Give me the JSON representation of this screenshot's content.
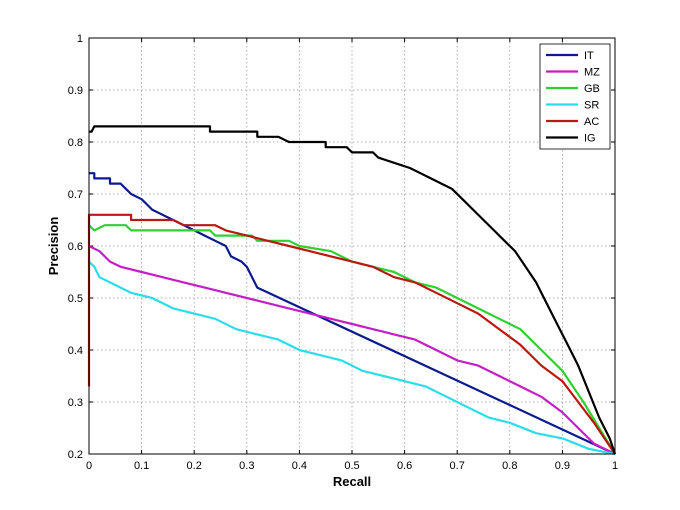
{
  "chart_data": {
    "type": "line",
    "title": "",
    "xlabel": "Recall",
    "ylabel": "Precision",
    "xlim": [
      0,
      1
    ],
    "ylim": [
      0.2,
      1
    ],
    "xticks": [
      "0",
      "0.1",
      "0.2",
      "0.3",
      "0.4",
      "0.5",
      "0.6",
      "0.7",
      "0.8",
      "0.9",
      "1"
    ],
    "yticks": [
      "0.2",
      "0.3",
      "0.4",
      "0.5",
      "0.6",
      "0.7",
      "0.8",
      "0.9",
      "1"
    ],
    "grid": true,
    "legend_position": "top-right",
    "series": [
      {
        "name": "IT",
        "color": "#0b1a8f",
        "points": [
          [
            0,
            0.74
          ],
          [
            0.01,
            0.74
          ],
          [
            0.01,
            0.73
          ],
          [
            0.04,
            0.73
          ],
          [
            0.04,
            0.72
          ],
          [
            0.06,
            0.72
          ],
          [
            0.07,
            0.71
          ],
          [
            0.08,
            0.7
          ],
          [
            0.1,
            0.69
          ],
          [
            0.11,
            0.68
          ],
          [
            0.12,
            0.67
          ],
          [
            0.14,
            0.66
          ],
          [
            0.16,
            0.65
          ],
          [
            0.18,
            0.64
          ],
          [
            0.2,
            0.63
          ],
          [
            0.22,
            0.62
          ],
          [
            0.24,
            0.61
          ],
          [
            0.26,
            0.6
          ],
          [
            0.27,
            0.58
          ],
          [
            0.29,
            0.57
          ],
          [
            0.3,
            0.56
          ],
          [
            0.32,
            0.52
          ],
          [
            1.0,
            0.2
          ]
        ]
      },
      {
        "name": "MZ",
        "color": "#c41fc4",
        "points": [
          [
            0,
            0.6
          ],
          [
            0.02,
            0.59
          ],
          [
            0.04,
            0.57
          ],
          [
            0.06,
            0.56
          ],
          [
            0.1,
            0.55
          ],
          [
            0.14,
            0.54
          ],
          [
            0.18,
            0.53
          ],
          [
            0.22,
            0.52
          ],
          [
            0.26,
            0.51
          ],
          [
            0.3,
            0.5
          ],
          [
            0.34,
            0.49
          ],
          [
            0.38,
            0.48
          ],
          [
            0.42,
            0.47
          ],
          [
            0.46,
            0.46
          ],
          [
            0.5,
            0.45
          ],
          [
            0.54,
            0.44
          ],
          [
            0.58,
            0.43
          ],
          [
            0.62,
            0.42
          ],
          [
            0.66,
            0.4
          ],
          [
            0.7,
            0.38
          ],
          [
            0.74,
            0.37
          ],
          [
            0.78,
            0.35
          ],
          [
            0.82,
            0.33
          ],
          [
            0.86,
            0.31
          ],
          [
            0.9,
            0.28
          ],
          [
            0.93,
            0.25
          ],
          [
            0.96,
            0.22
          ],
          [
            1.0,
            0.2
          ]
        ]
      },
      {
        "name": "GB",
        "color": "#2ed12e",
        "points": [
          [
            0,
            0.64
          ],
          [
            0.01,
            0.63
          ],
          [
            0.03,
            0.64
          ],
          [
            0.07,
            0.64
          ],
          [
            0.08,
            0.63
          ],
          [
            0.23,
            0.63
          ],
          [
            0.24,
            0.62
          ],
          [
            0.31,
            0.62
          ],
          [
            0.32,
            0.61
          ],
          [
            0.38,
            0.61
          ],
          [
            0.4,
            0.6
          ],
          [
            0.46,
            0.59
          ],
          [
            0.5,
            0.57
          ],
          [
            0.54,
            0.56
          ],
          [
            0.58,
            0.55
          ],
          [
            0.62,
            0.53
          ],
          [
            0.66,
            0.52
          ],
          [
            0.7,
            0.5
          ],
          [
            0.74,
            0.48
          ],
          [
            0.78,
            0.46
          ],
          [
            0.82,
            0.44
          ],
          [
            0.86,
            0.4
          ],
          [
            0.9,
            0.36
          ],
          [
            0.94,
            0.3
          ],
          [
            0.97,
            0.25
          ],
          [
            1.0,
            0.2
          ]
        ]
      },
      {
        "name": "SR",
        "color": "#2bdde8",
        "points": [
          [
            0,
            0.57
          ],
          [
            0.01,
            0.56
          ],
          [
            0.02,
            0.54
          ],
          [
            0.04,
            0.53
          ],
          [
            0.06,
            0.52
          ],
          [
            0.08,
            0.51
          ],
          [
            0.12,
            0.5
          ],
          [
            0.16,
            0.48
          ],
          [
            0.2,
            0.47
          ],
          [
            0.24,
            0.46
          ],
          [
            0.28,
            0.44
          ],
          [
            0.32,
            0.43
          ],
          [
            0.36,
            0.42
          ],
          [
            0.4,
            0.4
          ],
          [
            0.44,
            0.39
          ],
          [
            0.48,
            0.38
          ],
          [
            0.52,
            0.36
          ],
          [
            0.56,
            0.35
          ],
          [
            0.6,
            0.34
          ],
          [
            0.64,
            0.33
          ],
          [
            0.68,
            0.31
          ],
          [
            0.72,
            0.29
          ],
          [
            0.76,
            0.27
          ],
          [
            0.8,
            0.26
          ],
          [
            0.85,
            0.24
          ],
          [
            0.9,
            0.23
          ],
          [
            0.95,
            0.21
          ],
          [
            1.0,
            0.2
          ]
        ]
      },
      {
        "name": "AC",
        "color": "#b81a0f",
        "points": [
          [
            0,
            0.33
          ],
          [
            0,
            0.66
          ],
          [
            0.08,
            0.66
          ],
          [
            0.08,
            0.65
          ],
          [
            0.16,
            0.65
          ],
          [
            0.18,
            0.64
          ],
          [
            0.24,
            0.64
          ],
          [
            0.26,
            0.63
          ],
          [
            0.3,
            0.62
          ],
          [
            0.34,
            0.61
          ],
          [
            0.38,
            0.6
          ],
          [
            0.42,
            0.59
          ],
          [
            0.46,
            0.58
          ],
          [
            0.5,
            0.57
          ],
          [
            0.54,
            0.56
          ],
          [
            0.58,
            0.54
          ],
          [
            0.62,
            0.53
          ],
          [
            0.66,
            0.51
          ],
          [
            0.7,
            0.49
          ],
          [
            0.74,
            0.47
          ],
          [
            0.78,
            0.44
          ],
          [
            0.82,
            0.41
          ],
          [
            0.86,
            0.37
          ],
          [
            0.9,
            0.34
          ],
          [
            0.93,
            0.3
          ],
          [
            0.96,
            0.26
          ],
          [
            1.0,
            0.2
          ]
        ]
      },
      {
        "name": "IG",
        "color": "#000000",
        "points": [
          [
            0,
            0.82
          ],
          [
            0.005,
            0.82
          ],
          [
            0.01,
            0.83
          ],
          [
            0.23,
            0.83
          ],
          [
            0.23,
            0.82
          ],
          [
            0.32,
            0.82
          ],
          [
            0.32,
            0.81
          ],
          [
            0.36,
            0.81
          ],
          [
            0.38,
            0.8
          ],
          [
            0.45,
            0.8
          ],
          [
            0.45,
            0.79
          ],
          [
            0.49,
            0.79
          ],
          [
            0.5,
            0.78
          ],
          [
            0.54,
            0.78
          ],
          [
            0.55,
            0.77
          ],
          [
            0.58,
            0.76
          ],
          [
            0.61,
            0.75
          ],
          [
            0.63,
            0.74
          ],
          [
            0.65,
            0.73
          ],
          [
            0.67,
            0.72
          ],
          [
            0.69,
            0.71
          ],
          [
            0.71,
            0.69
          ],
          [
            0.73,
            0.67
          ],
          [
            0.75,
            0.65
          ],
          [
            0.77,
            0.63
          ],
          [
            0.79,
            0.61
          ],
          [
            0.81,
            0.59
          ],
          [
            0.83,
            0.56
          ],
          [
            0.85,
            0.53
          ],
          [
            0.87,
            0.49
          ],
          [
            0.89,
            0.45
          ],
          [
            0.91,
            0.41
          ],
          [
            0.93,
            0.37
          ],
          [
            0.95,
            0.32
          ],
          [
            0.97,
            0.27
          ],
          [
            0.99,
            0.23
          ],
          [
            1.0,
            0.2
          ]
        ]
      }
    ]
  }
}
